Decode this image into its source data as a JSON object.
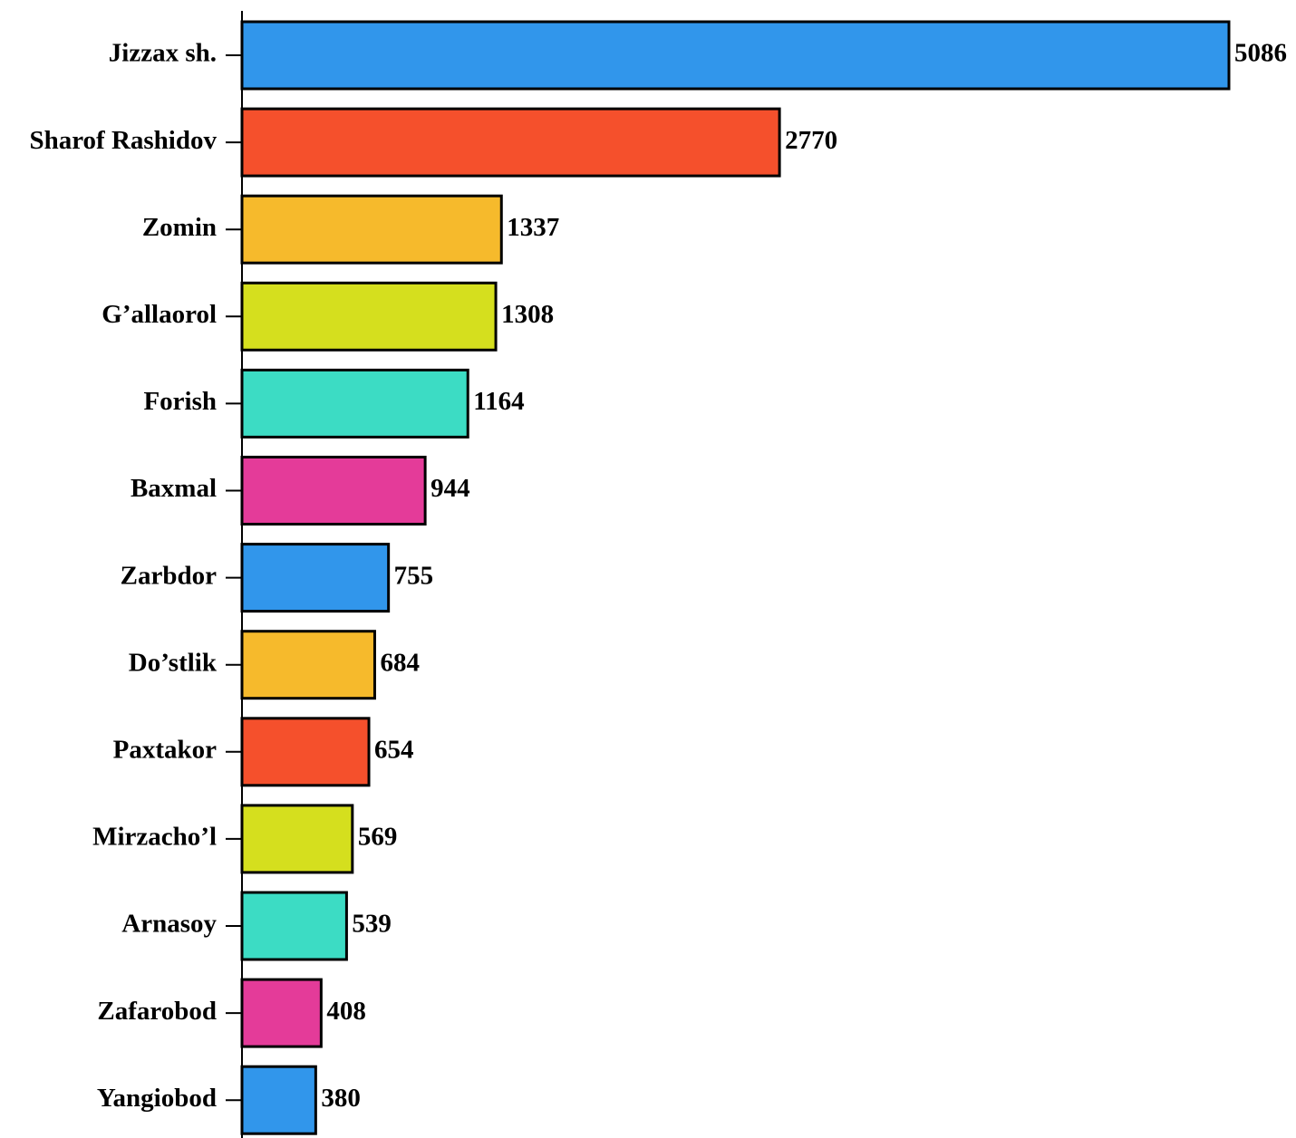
{
  "chart_data": {
    "type": "bar",
    "orientation": "horizontal",
    "categories": [
      "Jizzax sh.",
      "Sharof Rashidov",
      "Zomin",
      "G’allaorol",
      "Forish",
      "Baxmal",
      "Zarbdor",
      "Do’stlik",
      "Paxtakor",
      "Mirzacho’l",
      "Arnasoy",
      "Zafarobod",
      "Yangiobod"
    ],
    "values": [
      5086,
      2770,
      1337,
      1308,
      1164,
      944,
      755,
      684,
      654,
      569,
      539,
      408,
      380
    ],
    "value_labels": [
      "5086",
      "2770",
      "1337",
      "1308",
      "1164",
      "944",
      "755",
      "684",
      "654",
      "569",
      "539",
      "408",
      "380"
    ],
    "colors": [
      "#3196EB",
      "#F5502C",
      "#F6BA2C",
      "#D5DF1E",
      "#3CDCC4",
      "#E43B99",
      "#3196EB",
      "#F6BA2C",
      "#F5502C",
      "#D5DF1E",
      "#3CDCC4",
      "#E43B99",
      "#3196EB"
    ],
    "xlim": [
      0,
      5086
    ],
    "title": "",
    "xlabel": "",
    "ylabel": "",
    "grid": false,
    "legend": "none",
    "data_labels": "outside-end"
  }
}
